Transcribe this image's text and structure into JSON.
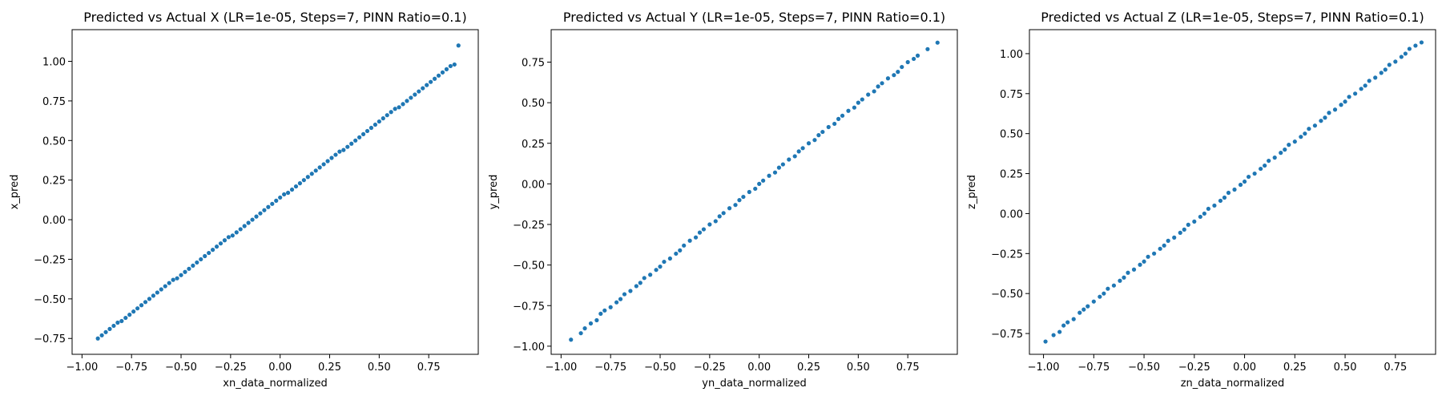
{
  "figure": {
    "background": "#ffffff",
    "marker_color": "#1f77b4"
  },
  "chart_data": [
    {
      "type": "scatter",
      "title": "Predicted vs Actual X (LR=1e-05, Steps=7, PINN Ratio=0.1)",
      "xlabel": "xn_data_normalized",
      "ylabel": "x_pred",
      "xlim": [
        -1.05,
        1.0
      ],
      "ylim": [
        -0.85,
        1.2
      ],
      "xticks": [
        -1.0,
        -0.75,
        -0.5,
        -0.25,
        0.0,
        0.25,
        0.5,
        0.75
      ],
      "xtick_labels": [
        "−1.00",
        "−0.75",
        "−0.50",
        "−0.25",
        "0.00",
        "0.25",
        "0.50",
        "0.75"
      ],
      "yticks": [
        -0.75,
        -0.5,
        -0.25,
        0.0,
        0.25,
        0.5,
        0.75,
        1.0
      ],
      "ytick_labels": [
        "−0.75",
        "−0.50",
        "−0.25",
        "0.00",
        "0.25",
        "0.50",
        "0.75",
        "1.00"
      ],
      "grid": false,
      "series": [
        {
          "x": [
            -0.92,
            -0.9,
            -0.88,
            -0.86,
            -0.84,
            -0.82,
            -0.8,
            -0.78,
            -0.76,
            -0.74,
            -0.72,
            -0.7,
            -0.68,
            -0.66,
            -0.64,
            -0.62,
            -0.6,
            -0.58,
            -0.56,
            -0.54,
            -0.52,
            -0.5,
            -0.48,
            -0.46,
            -0.44,
            -0.42,
            -0.4,
            -0.38,
            -0.36,
            -0.34,
            -0.32,
            -0.3,
            -0.28,
            -0.26,
            -0.24,
            -0.22,
            -0.2,
            -0.18,
            -0.16,
            -0.14,
            -0.12,
            -0.1,
            -0.08,
            -0.06,
            -0.04,
            -0.02,
            0.0,
            0.02,
            0.04,
            0.06,
            0.08,
            0.1,
            0.12,
            0.14,
            0.16,
            0.18,
            0.2,
            0.22,
            0.24,
            0.26,
            0.28,
            0.3,
            0.32,
            0.34,
            0.36,
            0.38,
            0.4,
            0.42,
            0.44,
            0.46,
            0.48,
            0.5,
            0.52,
            0.54,
            0.56,
            0.58,
            0.6,
            0.62,
            0.64,
            0.66,
            0.68,
            0.7,
            0.72,
            0.74,
            0.76,
            0.78,
            0.8,
            0.82,
            0.84,
            0.86,
            0.88,
            0.9
          ],
          "y": [
            -0.75,
            -0.73,
            -0.71,
            -0.69,
            -0.67,
            -0.65,
            -0.64,
            -0.62,
            -0.6,
            -0.58,
            -0.56,
            -0.54,
            -0.52,
            -0.5,
            -0.48,
            -0.46,
            -0.44,
            -0.42,
            -0.4,
            -0.38,
            -0.37,
            -0.35,
            -0.33,
            -0.31,
            -0.29,
            -0.27,
            -0.25,
            -0.23,
            -0.21,
            -0.19,
            -0.17,
            -0.15,
            -0.13,
            -0.11,
            -0.1,
            -0.08,
            -0.06,
            -0.04,
            -0.02,
            0.0,
            0.02,
            0.04,
            0.06,
            0.08,
            0.1,
            0.12,
            0.14,
            0.16,
            0.17,
            0.19,
            0.21,
            0.23,
            0.25,
            0.27,
            0.29,
            0.31,
            0.33,
            0.35,
            0.37,
            0.39,
            0.41,
            0.43,
            0.44,
            0.46,
            0.48,
            0.5,
            0.52,
            0.54,
            0.56,
            0.58,
            0.6,
            0.62,
            0.64,
            0.66,
            0.68,
            0.7,
            0.71,
            0.73,
            0.75,
            0.77,
            0.79,
            0.81,
            0.83,
            0.85,
            0.87,
            0.89,
            0.91,
            0.93,
            0.95,
            0.97,
            0.98,
            1.1
          ]
        }
      ]
    },
    {
      "type": "scatter",
      "title": "Predicted vs Actual Y (LR=1e-05, Steps=7, PINN Ratio=0.1)",
      "xlabel": "yn_data_normalized",
      "ylabel": "y_pred",
      "xlim": [
        -1.05,
        1.0
      ],
      "ylim": [
        -1.05,
        0.95
      ],
      "xticks": [
        -1.0,
        -0.75,
        -0.5,
        -0.25,
        0.0,
        0.25,
        0.5,
        0.75
      ],
      "xtick_labels": [
        "−1.00",
        "−0.75",
        "−0.50",
        "−0.25",
        "0.00",
        "0.25",
        "0.50",
        "0.75"
      ],
      "yticks": [
        -1.0,
        -0.75,
        -0.5,
        -0.25,
        0.0,
        0.25,
        0.5,
        0.75
      ],
      "ytick_labels": [
        "−1.00",
        "−0.75",
        "−0.50",
        "−0.25",
        "0.00",
        "0.25",
        "0.50",
        "0.75"
      ],
      "grid": false,
      "series": [
        {
          "x": [
            -0.95,
            -0.9,
            -0.88,
            -0.85,
            -0.82,
            -0.8,
            -0.78,
            -0.75,
            -0.72,
            -0.7,
            -0.68,
            -0.65,
            -0.62,
            -0.6,
            -0.58,
            -0.55,
            -0.52,
            -0.5,
            -0.48,
            -0.45,
            -0.42,
            -0.4,
            -0.38,
            -0.35,
            -0.32,
            -0.3,
            -0.28,
            -0.25,
            -0.22,
            -0.2,
            -0.18,
            -0.15,
            -0.12,
            -0.1,
            -0.08,
            -0.05,
            -0.02,
            0.0,
            0.02,
            0.05,
            0.08,
            0.1,
            0.12,
            0.15,
            0.18,
            0.2,
            0.22,
            0.25,
            0.28,
            0.3,
            0.32,
            0.35,
            0.38,
            0.4,
            0.42,
            0.45,
            0.48,
            0.5,
            0.52,
            0.55,
            0.58,
            0.6,
            0.62,
            0.65,
            0.68,
            0.7,
            0.72,
            0.75,
            0.78,
            0.8,
            0.85,
            0.9
          ],
          "y": [
            -0.96,
            -0.92,
            -0.89,
            -0.86,
            -0.84,
            -0.8,
            -0.78,
            -0.76,
            -0.73,
            -0.71,
            -0.68,
            -0.66,
            -0.63,
            -0.61,
            -0.58,
            -0.56,
            -0.53,
            -0.51,
            -0.48,
            -0.46,
            -0.43,
            -0.41,
            -0.38,
            -0.35,
            -0.33,
            -0.3,
            -0.28,
            -0.25,
            -0.23,
            -0.2,
            -0.18,
            -0.15,
            -0.13,
            -0.1,
            -0.08,
            -0.05,
            -0.03,
            0.0,
            0.02,
            0.05,
            0.07,
            0.1,
            0.12,
            0.15,
            0.17,
            0.2,
            0.22,
            0.25,
            0.27,
            0.3,
            0.32,
            0.35,
            0.37,
            0.4,
            0.42,
            0.45,
            0.47,
            0.5,
            0.52,
            0.55,
            0.57,
            0.6,
            0.62,
            0.65,
            0.67,
            0.69,
            0.72,
            0.75,
            0.77,
            0.79,
            0.83,
            0.87
          ]
        }
      ]
    },
    {
      "type": "scatter",
      "title": "Predicted vs Actual Z (LR=1e-05, Steps=7, PINN Ratio=0.1)",
      "xlabel": "zn_data_normalized",
      "ylabel": "z_pred",
      "xlim": [
        -1.07,
        0.95
      ],
      "ylim": [
        -0.88,
        1.15
      ],
      "xticks": [
        -1.0,
        -0.75,
        -0.5,
        -0.25,
        0.0,
        0.25,
        0.5,
        0.75
      ],
      "xtick_labels": [
        "−1.00",
        "−0.75",
        "−0.50",
        "−0.25",
        "0.00",
        "0.25",
        "0.50",
        "0.75"
      ],
      "yticks": [
        -0.75,
        -0.5,
        -0.25,
        0.0,
        0.25,
        0.5,
        0.75,
        1.0
      ],
      "ytick_labels": [
        "−0.75",
        "−0.50",
        "−0.25",
        "0.00",
        "0.25",
        "0.50",
        "0.75",
        "1.00"
      ],
      "grid": false,
      "series": [
        {
          "x": [
            -0.99,
            -0.95,
            -0.92,
            -0.9,
            -0.88,
            -0.85,
            -0.82,
            -0.8,
            -0.78,
            -0.75,
            -0.72,
            -0.7,
            -0.68,
            -0.65,
            -0.62,
            -0.6,
            -0.58,
            -0.55,
            -0.52,
            -0.5,
            -0.48,
            -0.45,
            -0.42,
            -0.4,
            -0.38,
            -0.35,
            -0.32,
            -0.3,
            -0.28,
            -0.25,
            -0.22,
            -0.2,
            -0.18,
            -0.15,
            -0.12,
            -0.1,
            -0.08,
            -0.05,
            -0.02,
            0.0,
            0.02,
            0.05,
            0.08,
            0.1,
            0.12,
            0.15,
            0.18,
            0.2,
            0.22,
            0.25,
            0.28,
            0.3,
            0.32,
            0.35,
            0.38,
            0.4,
            0.42,
            0.45,
            0.48,
            0.5,
            0.52,
            0.55,
            0.58,
            0.6,
            0.62,
            0.65,
            0.68,
            0.7,
            0.72,
            0.75,
            0.78,
            0.8,
            0.82,
            0.85,
            0.88
          ],
          "y": [
            -0.8,
            -0.76,
            -0.74,
            -0.7,
            -0.68,
            -0.66,
            -0.62,
            -0.6,
            -0.58,
            -0.55,
            -0.52,
            -0.5,
            -0.47,
            -0.45,
            -0.42,
            -0.4,
            -0.37,
            -0.35,
            -0.32,
            -0.3,
            -0.27,
            -0.25,
            -0.22,
            -0.2,
            -0.17,
            -0.15,
            -0.12,
            -0.1,
            -0.07,
            -0.05,
            -0.02,
            0.0,
            0.03,
            0.05,
            0.08,
            0.1,
            0.13,
            0.15,
            0.18,
            0.2,
            0.23,
            0.25,
            0.28,
            0.3,
            0.33,
            0.35,
            0.38,
            0.4,
            0.43,
            0.45,
            0.48,
            0.5,
            0.53,
            0.55,
            0.58,
            0.6,
            0.63,
            0.65,
            0.68,
            0.7,
            0.73,
            0.75,
            0.78,
            0.8,
            0.83,
            0.85,
            0.88,
            0.9,
            0.93,
            0.95,
            0.98,
            1.0,
            1.03,
            1.05,
            1.07
          ]
        }
      ]
    }
  ]
}
